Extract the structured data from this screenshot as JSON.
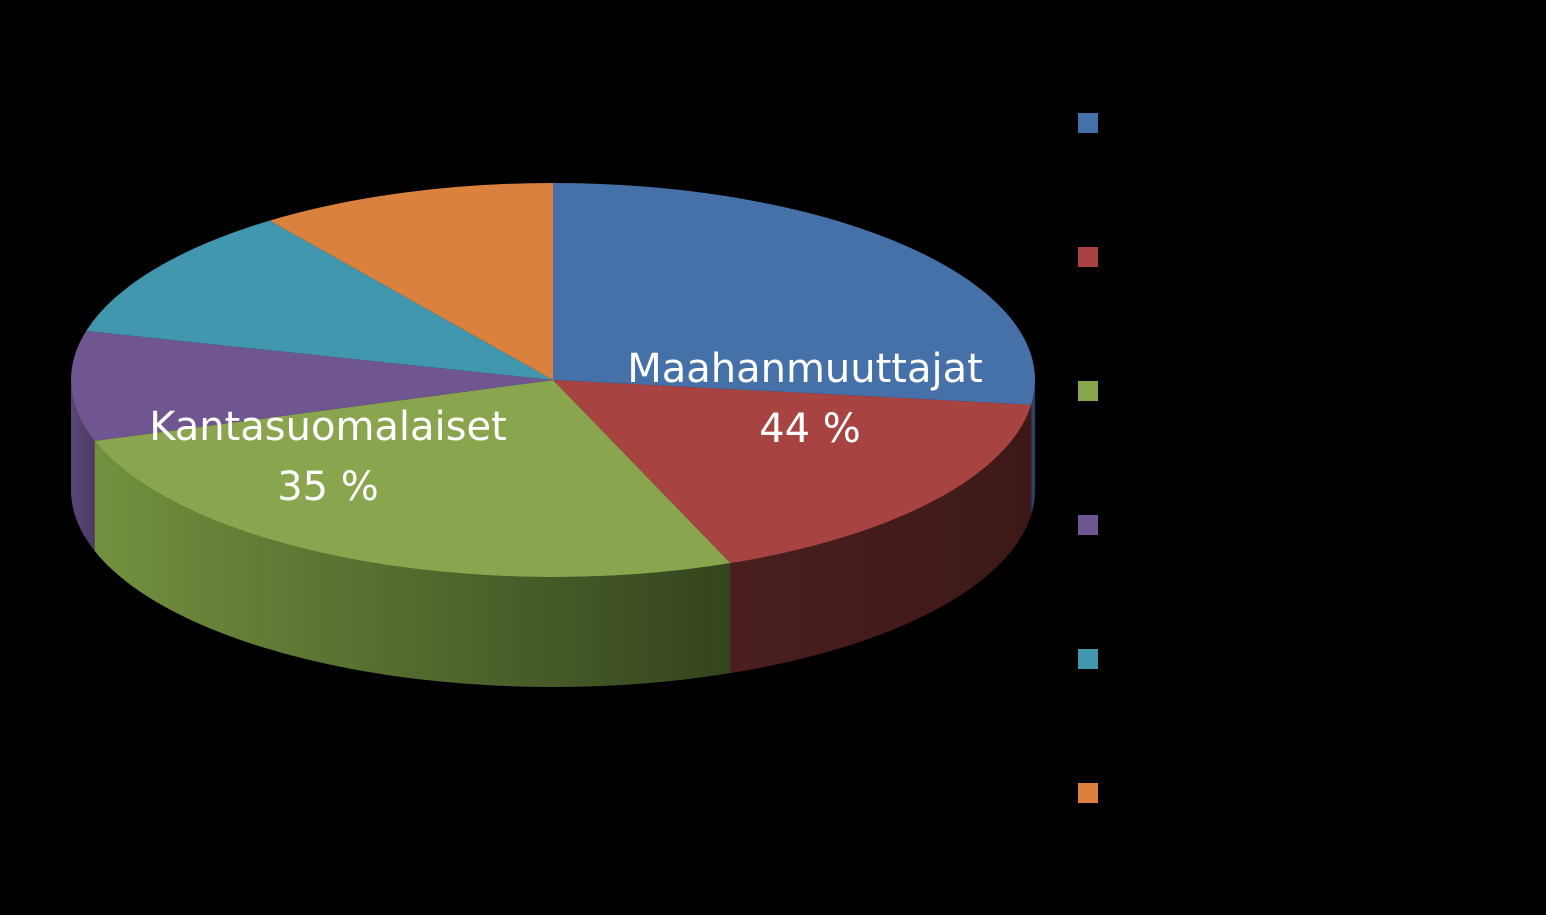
{
  "chart_data": {
    "type": "pie",
    "style": "3d-pie",
    "background": "#000000",
    "start": "12 o'clock, clockwise",
    "slices": [
      {
        "name": "",
        "value": 27,
        "color": "#4671A8"
      },
      {
        "name": "",
        "value": 17,
        "color": "#A74442"
      },
      {
        "name": "",
        "value": 26,
        "color": "#89A54E"
      },
      {
        "name": "",
        "value": 9,
        "color": "#6F5690"
      },
      {
        "name": "",
        "value": 11,
        "color": "#4197AE"
      },
      {
        "name": "",
        "value": 10,
        "color": "#DA813D"
      }
    ],
    "group_labels": [
      {
        "name": "Maahanmuuttajat",
        "value": "44 %"
      },
      {
        "name": "Kantasuomalaiset",
        "value": "35 %"
      }
    ],
    "legend": {
      "position": "right",
      "labels_visible": false
    }
  }
}
